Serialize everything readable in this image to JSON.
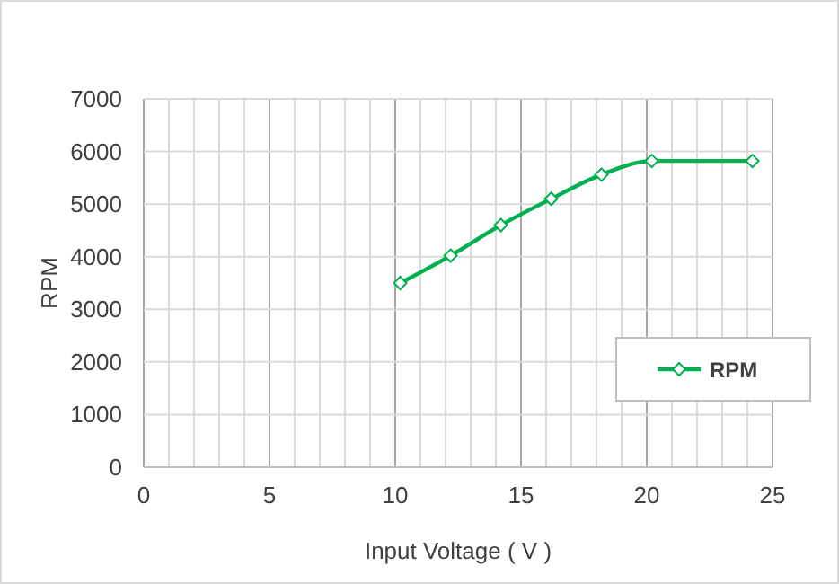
{
  "chart_data": {
    "type": "line",
    "xlabel": "Input Voltage ( V )",
    "ylabel": "RPM",
    "x": [
      10.2,
      12.2,
      14.2,
      16.2,
      18.2,
      20.2,
      24.2
    ],
    "series": [
      {
        "name": "RPM",
        "color": "#00b050",
        "values": [
          3500,
          4020,
          4600,
          5100,
          5560,
          5820,
          5820
        ]
      }
    ],
    "xlim": [
      0,
      25
    ],
    "xticks": [
      0,
      {
        "value": 1,
        "label": null
      },
      {
        "value": 2,
        "label": null
      },
      {
        "value": 3,
        "label": null
      },
      {
        "value": 4,
        "label": null
      },
      5,
      {
        "value": 6,
        "label": null
      },
      {
        "value": 7,
        "label": null
      },
      {
        "value": 8,
        "label": null
      },
      {
        "value": 9,
        "label": null
      },
      10,
      {
        "value": 11,
        "label": null
      },
      {
        "value": 12,
        "label": null
      },
      {
        "value": 13,
        "label": null
      },
      {
        "value": 14,
        "label": null
      },
      15,
      {
        "value": 16,
        "label": null
      },
      {
        "value": 17,
        "label": null
      },
      {
        "value": 18,
        "label": null
      },
      {
        "value": 19,
        "label": null
      },
      20,
      {
        "value": 21,
        "label": null
      },
      {
        "value": 22,
        "label": null
      },
      {
        "value": 23,
        "label": null
      },
      {
        "value": 24,
        "label": null
      },
      25
    ],
    "ylim": [
      0,
      7000
    ],
    "yticks": [
      0,
      1000,
      2000,
      3000,
      4000,
      5000,
      6000,
      7000
    ],
    "grid": true,
    "legend": "right",
    "marker": "diamond",
    "line_style": "solid"
  }
}
